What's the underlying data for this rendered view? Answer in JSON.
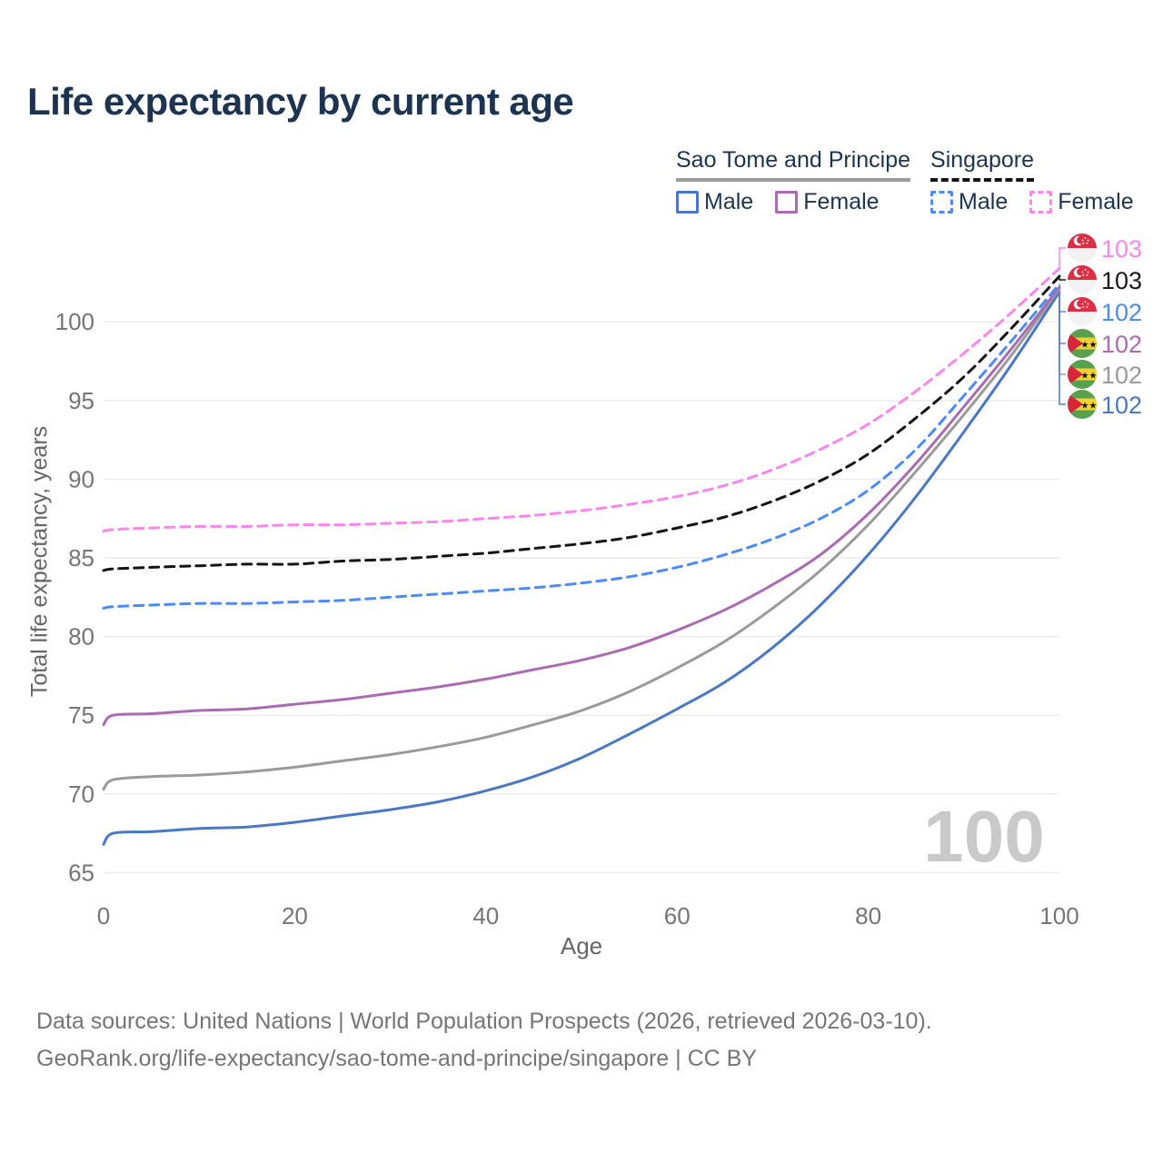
{
  "title": "Life expectancy by current age",
  "legend": {
    "groups": [
      {
        "label": "Sao Tome and Principe",
        "line_style": "solid",
        "underline_color": "#9a9a9a",
        "items": [
          {
            "label": "Male",
            "color": "#4a78c2"
          },
          {
            "label": "Female",
            "color": "#ab6bb3"
          }
        ]
      },
      {
        "label": "Singapore",
        "line_style": "dashed",
        "underline_color": "#141414",
        "items": [
          {
            "label": "Male",
            "color": "#4c8bf5"
          },
          {
            "label": "Female",
            "color": "#fb86ec"
          }
        ]
      }
    ]
  },
  "chart_data": {
    "type": "line",
    "title": "Life expectancy by current age",
    "xlabel": "Age",
    "ylabel": "Total life expectancy, years",
    "xticks": [
      0,
      20,
      40,
      60,
      80,
      100
    ],
    "yticks": [
      65,
      70,
      75,
      80,
      85,
      90,
      95,
      100
    ],
    "xlim": [
      0,
      100
    ],
    "ylim": [
      63,
      104
    ],
    "grid": "horizontal",
    "legend_position": "top-right",
    "hover_age_indicator": "100",
    "x": [
      0,
      1,
      5,
      10,
      15,
      20,
      25,
      30,
      35,
      40,
      45,
      50,
      55,
      60,
      65,
      70,
      75,
      80,
      85,
      90,
      95,
      100
    ],
    "series": [
      {
        "name": "Sao Tome and Principe — Male",
        "country": "Sao Tome and Principe",
        "sex": "Male",
        "color": "#4a78c2",
        "dashed": false,
        "flag": "sao-tome-and-principe",
        "end_label": "102",
        "values": [
          66.8,
          67.5,
          67.6,
          67.8,
          67.9,
          68.2,
          68.6,
          69.0,
          69.5,
          70.2,
          71.1,
          72.3,
          73.8,
          75.4,
          77.1,
          79.3,
          82.0,
          85.2,
          88.9,
          93.0,
          97.3,
          101.9
        ]
      },
      {
        "name": "Sao Tome and Principe — Both sexes",
        "country": "Sao Tome and Principe",
        "sex": "Both sexes",
        "color": "#9a9a9a",
        "dashed": false,
        "flag": "sao-tome-and-principe",
        "end_label": "102",
        "values": [
          70.3,
          70.9,
          71.1,
          71.2,
          71.4,
          71.7,
          72.1,
          72.5,
          73.0,
          73.6,
          74.4,
          75.3,
          76.5,
          78.0,
          79.7,
          81.8,
          84.2,
          87.1,
          90.5,
          94.1,
          97.9,
          102.1
        ]
      },
      {
        "name": "Sao Tome and Principe — Female",
        "country": "Sao Tome and Principe",
        "sex": "Female",
        "color": "#ab6bb3",
        "dashed": false,
        "flag": "sao-tome-and-principe",
        "end_label": "102",
        "values": [
          74.4,
          75.0,
          75.1,
          75.3,
          75.4,
          75.7,
          76.0,
          76.4,
          76.8,
          77.3,
          77.9,
          78.5,
          79.3,
          80.4,
          81.7,
          83.3,
          85.2,
          87.8,
          91.0,
          94.6,
          98.3,
          102.2
        ]
      },
      {
        "name": "Singapore — Male",
        "country": "Singapore",
        "sex": "Male",
        "color": "#4c8bf5",
        "dashed": true,
        "flag": "singapore",
        "end_label": "102",
        "values": [
          81.8,
          81.9,
          82.0,
          82.1,
          82.1,
          82.2,
          82.3,
          82.5,
          82.7,
          82.9,
          83.1,
          83.4,
          83.8,
          84.4,
          85.2,
          86.2,
          87.5,
          89.3,
          91.9,
          95.3,
          98.8,
          102.4
        ]
      },
      {
        "name": "Singapore — Both sexes",
        "country": "Singapore",
        "sex": "Both sexes",
        "color": "#141414",
        "dashed": true,
        "flag": "singapore",
        "end_label": "103",
        "values": [
          84.2,
          84.3,
          84.4,
          84.5,
          84.6,
          84.6,
          84.8,
          84.9,
          85.1,
          85.3,
          85.6,
          85.9,
          86.3,
          86.9,
          87.6,
          88.6,
          89.9,
          91.6,
          93.9,
          96.5,
          99.6,
          102.9
        ]
      },
      {
        "name": "Singapore — Female",
        "country": "Singapore",
        "sex": "Female",
        "color": "#fb86ec",
        "dashed": true,
        "flag": "singapore",
        "end_label": "103",
        "values": [
          86.7,
          86.8,
          86.9,
          87.0,
          87.0,
          87.1,
          87.1,
          87.2,
          87.3,
          87.5,
          87.7,
          88.0,
          88.4,
          88.9,
          89.6,
          90.6,
          91.9,
          93.5,
          95.6,
          98.0,
          100.6,
          103.4
        ]
      }
    ]
  },
  "footer": {
    "line1": "Data sources: United Nations | World Population Prospects (2026, retrieved 2026-03-10).",
    "line2": "GeoRank.org/life-expectancy/sao-tome-and-principe/singapore | CC BY"
  }
}
